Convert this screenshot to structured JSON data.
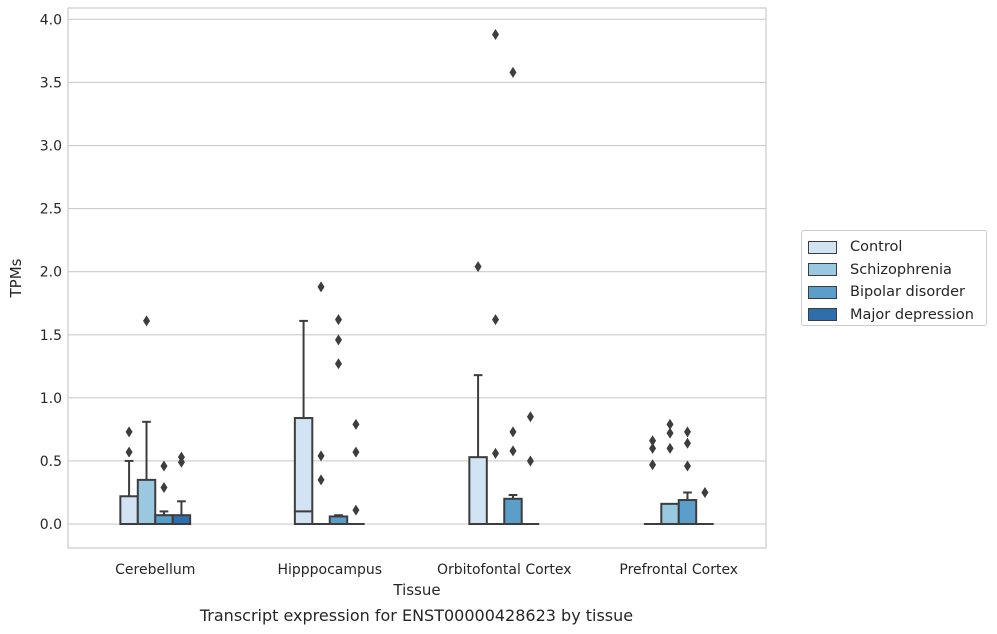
{
  "caption": "Transcript expression for ENST00000428623 by tissue",
  "chart_data": {
    "type": "box",
    "xlabel": "Tissue",
    "ylabel": "TPMs",
    "ylim": [
      -0.19,
      4.09
    ],
    "yticks": [
      "0.0",
      "0.5",
      "1.0",
      "1.5",
      "2.0",
      "2.5",
      "3.0",
      "3.5",
      "4.0"
    ],
    "grid": true,
    "legend_position": "right",
    "categories": [
      "Cerebellum",
      "Hipppocampus",
      "Orbitofontal Cortex",
      "Prefrontal Cortex"
    ],
    "series": [
      {
        "name": "Control",
        "color": "#d2e3f3",
        "boxes": [
          {
            "q1": 0,
            "median": 0,
            "q3": 0.22,
            "whisker_low": 0,
            "whisker_high": 0.5,
            "outliers": [
              0.57,
              0.73
            ]
          },
          {
            "q1": 0,
            "median": 0.1,
            "q3": 0.84,
            "whisker_low": 0,
            "whisker_high": 1.61,
            "outliers": []
          },
          {
            "q1": 0,
            "median": 0,
            "q3": 0.53,
            "whisker_low": 0,
            "whisker_high": 1.18,
            "outliers": [
              2.04
            ]
          },
          {
            "q1": 0,
            "median": 0,
            "q3": 0,
            "whisker_low": 0,
            "whisker_high": 0,
            "outliers": [
              0.47,
              0.6,
              0.66
            ]
          }
        ]
      },
      {
        "name": "Schizophrenia",
        "color": "#9ac8e0",
        "boxes": [
          {
            "q1": 0,
            "median": 0,
            "q3": 0.35,
            "whisker_low": 0,
            "whisker_high": 0.81,
            "outliers": [
              1.61
            ]
          },
          {
            "q1": 0,
            "median": 0,
            "q3": 0,
            "whisker_low": 0,
            "whisker_high": 0,
            "outliers": [
              0.35,
              0.54,
              1.88
            ]
          },
          {
            "q1": 0,
            "median": 0,
            "q3": 0,
            "whisker_low": 0,
            "whisker_high": 0,
            "outliers": [
              0.56,
              1.62,
              3.88
            ]
          },
          {
            "q1": 0,
            "median": 0,
            "q3": 0.16,
            "whisker_low": 0,
            "whisker_high": 0.16,
            "outliers": [
              0.6,
              0.72,
              0.79
            ]
          }
        ]
      },
      {
        "name": "Bipolar disorder",
        "color": "#5a9ec9",
        "boxes": [
          {
            "q1": 0,
            "median": 0,
            "q3": 0.07,
            "whisker_low": 0,
            "whisker_high": 0.1,
            "outliers": [
              0.29,
              0.46
            ]
          },
          {
            "q1": 0,
            "median": 0,
            "q3": 0.06,
            "whisker_low": 0,
            "whisker_high": 0.07,
            "outliers": [
              1.27,
              1.46,
              1.62
            ]
          },
          {
            "q1": 0,
            "median": 0,
            "q3": 0.2,
            "whisker_low": 0,
            "whisker_high": 0.23,
            "outliers": [
              0.58,
              0.73,
              3.58
            ]
          },
          {
            "q1": 0,
            "median": 0,
            "q3": 0.19,
            "whisker_low": 0,
            "whisker_high": 0.25,
            "outliers": [
              0.46,
              0.64,
              0.73
            ]
          }
        ]
      },
      {
        "name": "Major depression",
        "color": "#2d6fad",
        "boxes": [
          {
            "q1": 0,
            "median": 0,
            "q3": 0.07,
            "whisker_low": 0,
            "whisker_high": 0.18,
            "outliers": [
              0.49,
              0.53
            ]
          },
          {
            "q1": 0,
            "median": 0,
            "q3": 0,
            "whisker_low": 0,
            "whisker_high": 0,
            "outliers": [
              0.11,
              0.57,
              0.79
            ]
          },
          {
            "q1": 0,
            "median": 0,
            "q3": 0,
            "whisker_low": 0,
            "whisker_high": 0,
            "outliers": [
              0.5,
              0.85
            ]
          },
          {
            "q1": 0,
            "median": 0,
            "q3": 0,
            "whisker_low": 0,
            "whisker_high": 0,
            "outliers": [
              0.25
            ]
          }
        ]
      }
    ]
  }
}
